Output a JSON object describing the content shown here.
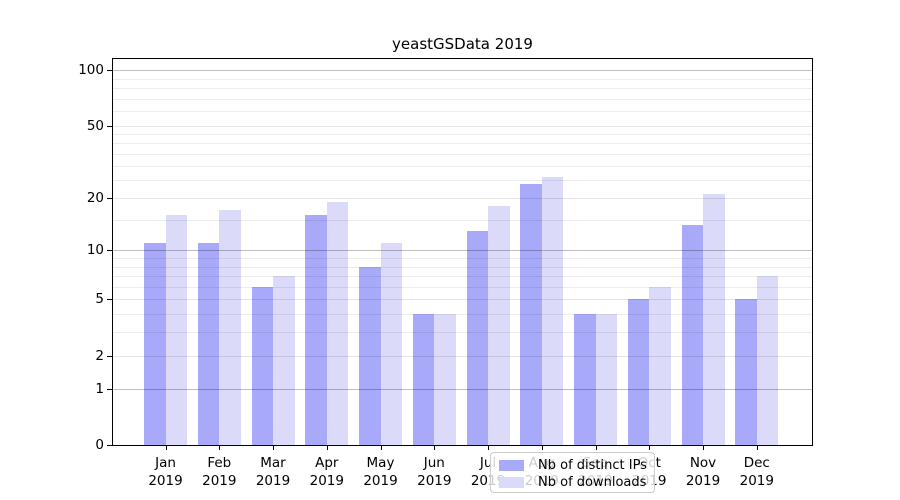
{
  "chart_data": {
    "type": "bar",
    "title": "yeastGSData 2019",
    "categories": [
      "Jan",
      "Feb",
      "Mar",
      "Apr",
      "May",
      "Jun",
      "Jul",
      "Aug",
      "Sep",
      "Oct",
      "Nov",
      "Dec"
    ],
    "category_year": "2019",
    "series": [
      {
        "name": "Nb of distinct IPs",
        "color": "#a9a9f9",
        "values": [
          11,
          11,
          6,
          16,
          8,
          4,
          13,
          24,
          4,
          5,
          14,
          5
        ]
      },
      {
        "name": "Nb of downloads",
        "color": "#dbdbf9",
        "values": [
          16,
          17,
          7,
          19,
          11,
          4,
          18,
          26,
          4,
          6,
          21,
          7
        ]
      }
    ],
    "xlabel": "",
    "ylabel": "",
    "y_scale": "log1p",
    "y_ticks": [
      0,
      1,
      2,
      5,
      10,
      20,
      50,
      100
    ],
    "ylim": [
      0,
      116
    ],
    "grid": "on",
    "gridline_values": {
      "major": [
        1,
        10,
        100
      ],
      "mid": [
        2,
        5,
        20,
        50
      ],
      "minor": [
        3,
        4,
        6,
        7,
        8,
        9,
        15,
        25,
        30,
        35,
        40,
        45,
        60,
        70,
        80,
        90
      ]
    },
    "legend_position": "bottom-center"
  }
}
